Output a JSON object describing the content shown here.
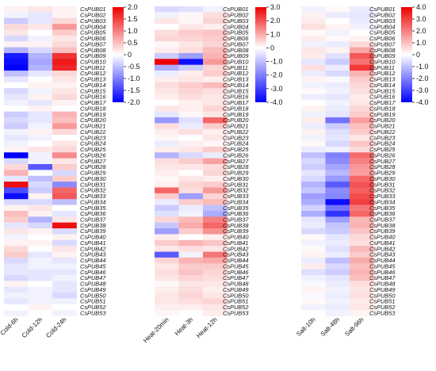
{
  "chart_data": [
    {
      "type": "heatmap",
      "panel": "cold",
      "columns": [
        "Cold-6h",
        "Cold-12h",
        "Cold-24h"
      ],
      "rows": [
        "CsPUB01",
        "CsPUB02",
        "CsPUB03",
        "CsPUB04",
        "CsPUB05",
        "CsPUB06",
        "CsPUB07",
        "CsPUB08",
        "CsPUB09",
        "CsPUB10",
        "CsPUB11",
        "CsPUB12",
        "CsPUB13",
        "CsPUB14",
        "CsPUB15",
        "CsPUB16",
        "CsPUB17",
        "CsPUB18",
        "CsPUB19",
        "CsPUB20",
        "CsPUB21",
        "CsPUB22",
        "CsPUB23",
        "CsPUB24",
        "CsPUB25",
        "CsPUB26",
        "CsPUB27",
        "CsPUB28",
        "CsPUB29",
        "CsPUB30",
        "CsPUB31",
        "CsPUB32",
        "CsPUB33",
        "CsPUB34",
        "CsPUB35",
        "CsPUB36",
        "CsPUB37",
        "CsPUB38",
        "CsPUB39",
        "CsPUB40",
        "CsPUB41",
        "CsPUB42",
        "CsPUB43",
        "CsPUB44",
        "CsPUB45",
        "CsPUB46",
        "CsPUB47",
        "CsPUB48",
        "CsPUB49",
        "CsPUB50",
        "CsPUB51",
        "CsPUB52",
        "CsPUB53"
      ],
      "values": [
        [
          0.1,
          0.2,
          0.1
        ],
        [
          -0.1,
          -0.2,
          0.1
        ],
        [
          -0.4,
          -0.2,
          0.3
        ],
        [
          0.3,
          0.2,
          0.8
        ],
        [
          0.2,
          0.0,
          0.4
        ],
        [
          -0.3,
          -0.1,
          0.2
        ],
        [
          0.1,
          0.1,
          0.3
        ],
        [
          -0.6,
          -0.3,
          0.5
        ],
        [
          -1.8,
          -0.6,
          1.6
        ],
        [
          -1.9,
          -0.7,
          1.8
        ],
        [
          -2.0,
          -0.6,
          1.7
        ],
        [
          -0.5,
          -0.2,
          0.3
        ],
        [
          -0.2,
          0.0,
          0.2
        ],
        [
          0.0,
          0.1,
          0.1
        ],
        [
          -0.3,
          -0.1,
          0.2
        ],
        [
          -0.2,
          0.1,
          0.3
        ],
        [
          -0.1,
          -0.2,
          0.1
        ],
        [
          0.0,
          0.1,
          0.0
        ],
        [
          -0.4,
          -0.2,
          0.6
        ],
        [
          -0.3,
          -0.2,
          0.5
        ],
        [
          -0.4,
          -0.1,
          0.8
        ],
        [
          -0.1,
          0.1,
          0.3
        ],
        [
          -0.2,
          -0.1,
          0.0
        ],
        [
          -0.1,
          0.0,
          0.2
        ],
        [
          0.1,
          0.2,
          0.3
        ],
        [
          -2.0,
          -0.1,
          0.9
        ],
        [
          -0.3,
          -0.1,
          0.2
        ],
        [
          0.3,
          -1.3,
          0.4
        ],
        [
          0.6,
          0.0,
          -0.3
        ],
        [
          -0.2,
          -0.5,
          0.4
        ],
        [
          1.9,
          -0.3,
          -0.9
        ],
        [
          -1.4,
          -0.4,
          1.2
        ],
        [
          -1.9,
          0.1,
          1.3
        ],
        [
          -0.3,
          -0.3,
          -0.5
        ],
        [
          0.1,
          0.2,
          0.0
        ],
        [
          0.5,
          0.1,
          -0.2
        ],
        [
          0.4,
          -0.6,
          0.2
        ],
        [
          -0.2,
          -0.3,
          1.9
        ],
        [
          0.2,
          0.1,
          -0.3
        ],
        [
          -0.1,
          0.0,
          0.1
        ],
        [
          0.1,
          0.1,
          -0.3
        ],
        [
          0.3,
          0.0,
          0.2
        ],
        [
          0.4,
          -0.2,
          0.1
        ],
        [
          -0.3,
          -0.1,
          -0.2
        ],
        [
          -0.2,
          -0.1,
          -0.1
        ],
        [
          -0.2,
          -0.2,
          -0.2
        ],
        [
          -0.3,
          -0.2,
          -0.1
        ],
        [
          0.1,
          0.0,
          -0.2
        ],
        [
          -0.2,
          -0.1,
          -0.2
        ],
        [
          -0.1,
          -0.1,
          -0.3
        ],
        [
          -0.2,
          -0.1,
          -0.1
        ],
        [
          0.0,
          0.1,
          0.0
        ],
        [
          -0.1,
          0.0,
          -0.1
        ]
      ],
      "color_scale": {
        "min": -2.0,
        "max": 2.0,
        "low": "#0000ff",
        "mid": "#ffffff",
        "high": "#ee0000"
      },
      "legend_ticks": [
        "2.0",
        "1.5",
        "1.0",
        "0.5",
        "0",
        "-0.5",
        "-1.0",
        "-1.5",
        "-2.0"
      ]
    },
    {
      "type": "heatmap",
      "panel": "heat",
      "columns": [
        "Heat-20min",
        "Heat-3h",
        "Heat-12h"
      ],
      "rows": [
        "CsPUB01",
        "CsPUB02",
        "CsPUB03",
        "CsPUB04",
        "CsPUB05",
        "CsPUB06",
        "CsPUB07",
        "CsPUB08",
        "CsPUB09",
        "CsPUB10",
        "CsPUB11",
        "CsPUB12",
        "CsPUB13",
        "CsPUB14",
        "CsPUB15",
        "CsPUB16",
        "CsPUB17",
        "CsPUB18",
        "CsPUB19",
        "CsPUB20",
        "CsPUB21",
        "CsPUB22",
        "CsPUB23",
        "CsPUB24",
        "CsPUB25",
        "CsPUB26",
        "CsPUB27",
        "CsPUB28",
        "CsPUB29",
        "CsPUB30",
        "CsPUB31",
        "CsPUB32",
        "CsPUB33",
        "CsPUB34",
        "CsPUB35",
        "CsPUB36",
        "CsPUB37",
        "CsPUB38",
        "CsPUB39",
        "CsPUB40",
        "CsPUB41",
        "CsPUB42",
        "CsPUB43",
        "CsPUB44",
        "CsPUB45",
        "CsPUB46",
        "CsPUB47",
        "CsPUB48",
        "CsPUB49",
        "CsPUB50",
        "CsPUB51",
        "CsPUB52",
        "CsPUB53"
      ],
      "values": [
        [
          -0.6,
          -0.5,
          -0.2
        ],
        [
          -0.2,
          0.1,
          0.4
        ],
        [
          0.3,
          0.1,
          0.5
        ],
        [
          0.0,
          0.3,
          0.2
        ],
        [
          0.4,
          0.6,
          0.7
        ],
        [
          0.5,
          0.5,
          0.6
        ],
        [
          0.1,
          0.3,
          0.5
        ],
        [
          0.2,
          0.4,
          0.8
        ],
        [
          -0.8,
          -1.5,
          0.9
        ],
        [
          3.2,
          -3.8,
          1.2
        ],
        [
          -1.3,
          -0.8,
          0.5
        ],
        [
          -0.3,
          0.2,
          0.6
        ],
        [
          0.2,
          0.3,
          0.2
        ],
        [
          0.4,
          0.6,
          0.8
        ],
        [
          0.3,
          0.5,
          0.4
        ],
        [
          0.2,
          0.4,
          0.3
        ],
        [
          0.0,
          0.2,
          0.3
        ],
        [
          0.3,
          0.2,
          0.5
        ],
        [
          -0.4,
          0.1,
          0.3
        ],
        [
          -1.6,
          -0.5,
          1.8
        ],
        [
          0.4,
          -0.3,
          0.6
        ],
        [
          0.2,
          0.4,
          0.2
        ],
        [
          0.1,
          0.0,
          0.3
        ],
        [
          -0.3,
          0.2,
          0.1
        ],
        [
          0.2,
          0.3,
          0.6
        ],
        [
          -1.2,
          -0.6,
          -0.3
        ],
        [
          0.4,
          0.6,
          1.1
        ],
        [
          0.3,
          0.3,
          0.4
        ],
        [
          0.2,
          0.0,
          0.5
        ],
        [
          0.1,
          0.3,
          0.2
        ],
        [
          0.2,
          0.5,
          0.6
        ],
        [
          1.8,
          0.4,
          1.2
        ],
        [
          0.6,
          -1.5,
          0.5
        ],
        [
          -0.3,
          0.6,
          0.8
        ],
        [
          -0.8,
          -0.3,
          -1.0
        ],
        [
          -0.5,
          -0.2,
          -1.3
        ],
        [
          0.5,
          0.8,
          1.5
        ],
        [
          -0.9,
          1.0,
          1.8
        ],
        [
          -1.5,
          0.6,
          1.3
        ],
        [
          0.2,
          0.0,
          0.2
        ],
        [
          0.6,
          0.9,
          0.7
        ],
        [
          0.3,
          0.4,
          0.3
        ],
        [
          -2.6,
          -0.2,
          1.6
        ],
        [
          0.5,
          0.9,
          1.0
        ],
        [
          0.3,
          0.6,
          0.6
        ],
        [
          0.4,
          0.7,
          0.5
        ],
        [
          0.3,
          0.5,
          0.4
        ],
        [
          0.1,
          0.3,
          0.3
        ],
        [
          0.2,
          0.4,
          0.2
        ],
        [
          0.3,
          0.5,
          0.3
        ],
        [
          0.3,
          0.4,
          0.5
        ],
        [
          0.2,
          0.2,
          0.3
        ],
        [
          0.1,
          0.0,
          0.2
        ]
      ],
      "color_scale": {
        "min": -4.0,
        "max": 3.0,
        "low": "#0000ff",
        "mid": "#ffffff",
        "high": "#ee0000"
      },
      "legend_ticks": [
        "3.0",
        "2.0",
        "1.0",
        "0",
        "-1.0",
        "-2.0",
        "-3.0",
        "-4.0"
      ]
    },
    {
      "type": "heatmap",
      "panel": "salt",
      "columns": [
        "Salt-10h",
        "Salt-48h",
        "Salt-96h"
      ],
      "rows": [
        "CsPUB01",
        "CsPUB02",
        "CsPUB03",
        "CsPUB04",
        "CsPUB05",
        "CsPUB06",
        "CsPUB07",
        "CsPUB08",
        "CsPUB09",
        "CsPUB10",
        "CsPUB11",
        "CsPUB12",
        "CsPUB13",
        "CsPUB14",
        "CsPUB15",
        "CsPUB16",
        "CsPUB17",
        "CsPUB18",
        "CsPUB19",
        "CsPUB20",
        "CsPUB21",
        "CsPUB22",
        "CsPUB23",
        "CsPUB24",
        "CsPUB25",
        "CsPUB26",
        "CsPUB27",
        "CsPUB28",
        "CsPUB29",
        "CsPUB30",
        "CsPUB31",
        "CsPUB32",
        "CsPUB33",
        "CsPUB34",
        "CsPUB35",
        "CsPUB36",
        "CsPUB37",
        "CsPUB38",
        "CsPUB39",
        "CsPUB40",
        "CsPUB41",
        "CsPUB42",
        "CsPUB43",
        "CsPUB44",
        "CsPUB45",
        "CsPUB46",
        "CsPUB47",
        "CsPUB48",
        "CsPUB49",
        "CsPUB50",
        "CsPUB51",
        "CsPUB52",
        "CsPUB53"
      ],
      "values": [
        [
          -0.2,
          0.1,
          -0.3
        ],
        [
          0.2,
          -0.3,
          -0.4
        ],
        [
          0.3,
          0.0,
          -0.3
        ],
        [
          0.5,
          0.2,
          -0.2
        ],
        [
          0.1,
          -0.2,
          0.0
        ],
        [
          0.3,
          0.1,
          0.2
        ],
        [
          -0.2,
          -0.3,
          0.6
        ],
        [
          0.4,
          0.2,
          1.4
        ],
        [
          0.3,
          -0.5,
          2.6
        ],
        [
          -0.4,
          -0.8,
          2.2
        ],
        [
          0.5,
          -0.3,
          3.1
        ],
        [
          -0.3,
          -0.6,
          1.2
        ],
        [
          0.2,
          -0.1,
          0.8
        ],
        [
          -0.2,
          -0.3,
          0.6
        ],
        [
          0.1,
          -0.2,
          0.5
        ],
        [
          -0.3,
          -0.4,
          0.3
        ],
        [
          0.0,
          -0.2,
          0.4
        ],
        [
          0.2,
          -0.3,
          0.6
        ],
        [
          -0.2,
          -0.4,
          0.8
        ],
        [
          0.3,
          -2.2,
          1.5
        ],
        [
          -0.3,
          -0.8,
          1.0
        ],
        [
          0.2,
          -0.5,
          0.8
        ],
        [
          -0.2,
          -0.4,
          0.4
        ],
        [
          0.1,
          -0.6,
          0.9
        ],
        [
          -0.3,
          -0.2,
          0.6
        ],
        [
          -1.0,
          -2.0,
          2.3
        ],
        [
          -0.6,
          -1.8,
          2.0
        ],
        [
          -0.8,
          -1.4,
          1.6
        ],
        [
          -0.4,
          -1.1,
          1.5
        ],
        [
          -0.6,
          -1.6,
          2.4
        ],
        [
          -1.2,
          -2.6,
          2.7
        ],
        [
          -0.9,
          -1.8,
          2.5
        ],
        [
          -1.5,
          -1.9,
          2.8
        ],
        [
          -1.3,
          -3.8,
          3.0
        ],
        [
          -0.7,
          -2.2,
          2.1
        ],
        [
          -1.3,
          -3.2,
          2.4
        ],
        [
          -0.4,
          -1.5,
          1.1
        ],
        [
          -0.3,
          -0.9,
          1.2
        ],
        [
          -0.6,
          -0.8,
          0.9
        ],
        [
          0.1,
          -0.4,
          0.6
        ],
        [
          -0.2,
          -0.3,
          0.5
        ],
        [
          0.1,
          -0.5,
          1.1
        ],
        [
          0.2,
          -0.3,
          0.8
        ],
        [
          -0.3,
          -1.0,
          1.3
        ],
        [
          0.3,
          -0.6,
          1.0
        ],
        [
          -0.5,
          -0.8,
          1.2
        ],
        [
          -0.2,
          -0.4,
          1.0
        ],
        [
          -0.1,
          -0.3,
          0.5
        ],
        [
          0.2,
          -0.2,
          0.4
        ],
        [
          -0.1,
          -0.3,
          0.5
        ],
        [
          0.1,
          -0.2,
          0.3
        ],
        [
          -0.2,
          -0.3,
          0.4
        ],
        [
          0.0,
          -0.2,
          0.2
        ]
      ],
      "color_scale": {
        "min": -4.0,
        "max": 4.0,
        "low": "#0000ff",
        "mid": "#ffffff",
        "high": "#ee0000"
      },
      "legend_ticks": [
        "4.0",
        "3.0",
        "2.0",
        "1.0",
        "0",
        "-1.0",
        "-2.0",
        "-3.0",
        "-4.0"
      ]
    }
  ]
}
